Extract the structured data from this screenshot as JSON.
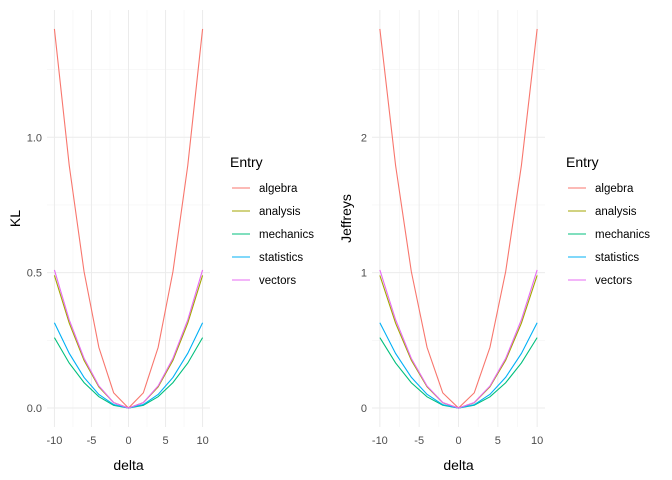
{
  "colors": {
    "algebra": "#F8766D",
    "analysis": "#A3A500",
    "mechanics": "#00BF7D",
    "statistics": "#00B0F6",
    "vectors": "#E76BF3"
  },
  "chart_data": [
    {
      "type": "line",
      "xlabel": "delta",
      "ylabel": "KL",
      "xlim": [
        -10,
        10
      ],
      "ylim": [
        0,
        1.4
      ],
      "x_ticks": [
        -10,
        -5,
        0,
        5,
        10
      ],
      "x_tick_labels": [
        "-10",
        "-5",
        "0",
        "5",
        "10"
      ],
      "y_ticks": [
        0,
        0.5,
        1.0
      ],
      "y_tick_labels": [
        "0.0",
        "0.5",
        "1.0"
      ],
      "grid": true,
      "legend_title": "Entry",
      "legend_position": "right",
      "x": [
        -10,
        -8,
        -6,
        -4,
        -2,
        0,
        2,
        4,
        6,
        8,
        10
      ],
      "series": [
        {
          "name": "algebra",
          "values": [
            1.4,
            0.896,
            0.504,
            0.224,
            0.056,
            0,
            0.056,
            0.224,
            0.504,
            0.896,
            1.4
          ]
        },
        {
          "name": "analysis",
          "values": [
            0.49,
            0.314,
            0.176,
            0.078,
            0.02,
            0,
            0.02,
            0.078,
            0.176,
            0.314,
            0.49
          ]
        },
        {
          "name": "mechanics",
          "values": [
            0.26,
            0.166,
            0.094,
            0.042,
            0.01,
            0,
            0.01,
            0.042,
            0.094,
            0.166,
            0.26
          ]
        },
        {
          "name": "statistics",
          "values": [
            0.315,
            0.202,
            0.113,
            0.05,
            0.013,
            0,
            0.013,
            0.05,
            0.113,
            0.202,
            0.315
          ]
        },
        {
          "name": "vectors",
          "values": [
            0.51,
            0.326,
            0.184,
            0.082,
            0.02,
            0,
            0.02,
            0.082,
            0.184,
            0.326,
            0.51
          ]
        }
      ]
    },
    {
      "type": "line",
      "xlabel": "delta",
      "ylabel": "Jeffreys",
      "xlim": [
        -10,
        10
      ],
      "ylim": [
        0,
        2.8
      ],
      "x_ticks": [
        -10,
        -5,
        0,
        5,
        10
      ],
      "x_tick_labels": [
        "-10",
        "-5",
        "0",
        "5",
        "10"
      ],
      "y_ticks": [
        0,
        1,
        2
      ],
      "y_tick_labels": [
        "0",
        "1",
        "2"
      ],
      "grid": true,
      "legend_title": "Entry",
      "legend_position": "right",
      "x": [
        -10,
        -8,
        -6,
        -4,
        -2,
        0,
        2,
        4,
        6,
        8,
        10
      ],
      "series": [
        {
          "name": "algebra",
          "values": [
            2.8,
            1.792,
            1.008,
            0.448,
            0.112,
            0,
            0.112,
            0.448,
            1.008,
            1.792,
            2.8
          ]
        },
        {
          "name": "analysis",
          "values": [
            0.98,
            0.627,
            0.353,
            0.157,
            0.039,
            0,
            0.039,
            0.157,
            0.353,
            0.627,
            0.98
          ]
        },
        {
          "name": "mechanics",
          "values": [
            0.52,
            0.333,
            0.187,
            0.083,
            0.021,
            0,
            0.021,
            0.083,
            0.187,
            0.333,
            0.52
          ]
        },
        {
          "name": "statistics",
          "values": [
            0.63,
            0.403,
            0.227,
            0.101,
            0.025,
            0,
            0.025,
            0.101,
            0.227,
            0.403,
            0.63
          ]
        },
        {
          "name": "vectors",
          "values": [
            1.02,
            0.653,
            0.367,
            0.163,
            0.041,
            0,
            0.041,
            0.163,
            0.367,
            0.653,
            1.02
          ]
        }
      ]
    }
  ]
}
